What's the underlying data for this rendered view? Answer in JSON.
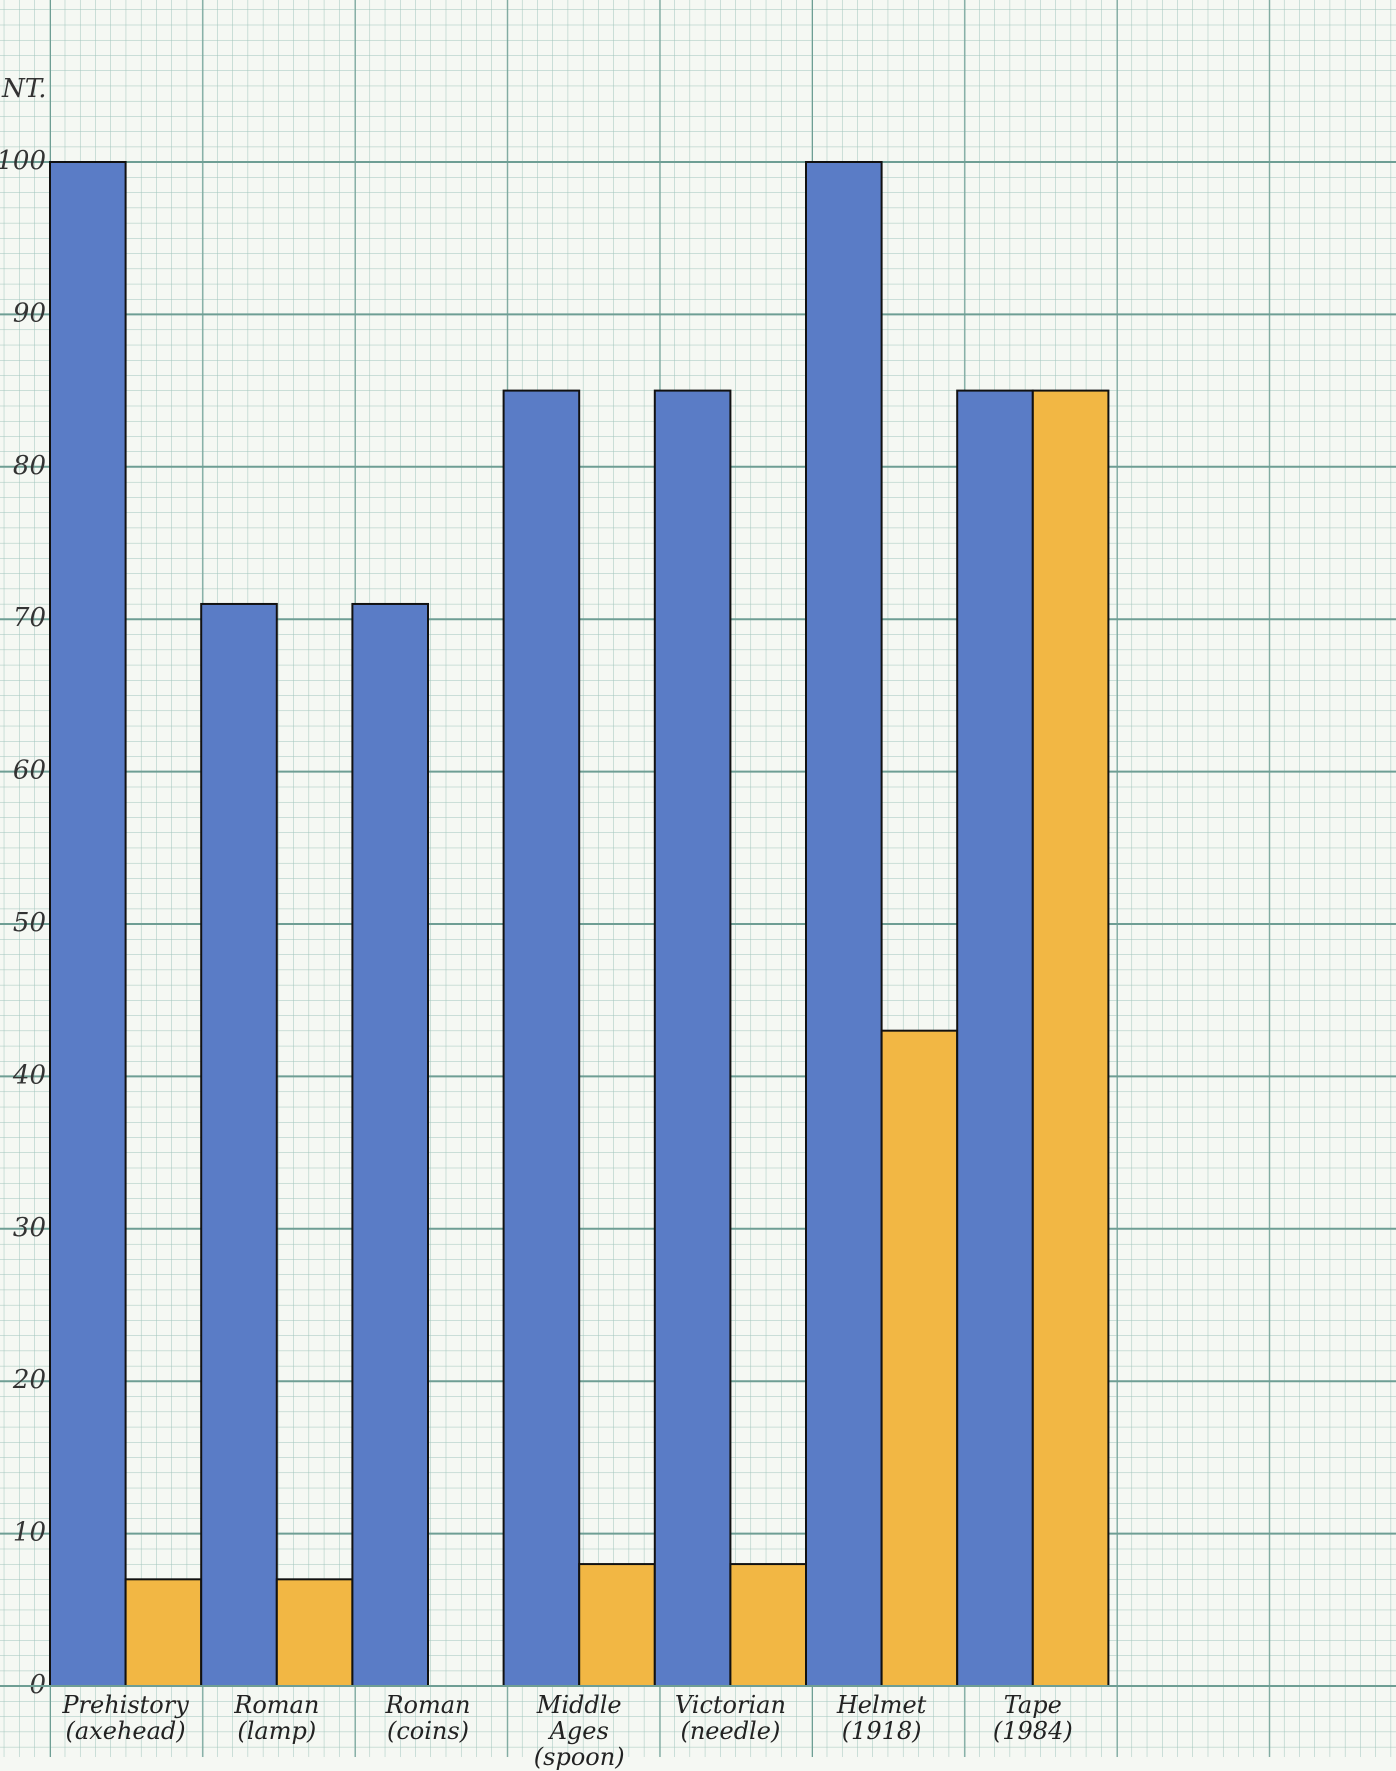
{
  "chart_data": {
    "type": "bar",
    "ylabel": "NT.",
    "categories": [
      "Prehistory\n(axehead)",
      "Roman\n(lamp)",
      "Roman\n(coins)",
      "Middle\nAges\n(spoon)",
      "Victorian\n(needle)",
      "Helmet\n(1918)",
      "Tape\n(1984)"
    ],
    "series": [
      {
        "color": "#5a7cc6",
        "values": [
          100,
          71,
          71,
          85,
          85,
          100,
          85
        ]
      },
      {
        "color": "#f2b744",
        "values": [
          7,
          7,
          0,
          8,
          8,
          43,
          85
        ]
      }
    ],
    "ylim": [
      0,
      100
    ],
    "yticks": [
      0,
      10,
      20,
      30,
      40,
      50,
      60,
      70,
      80,
      90,
      100
    ],
    "grid": true
  }
}
